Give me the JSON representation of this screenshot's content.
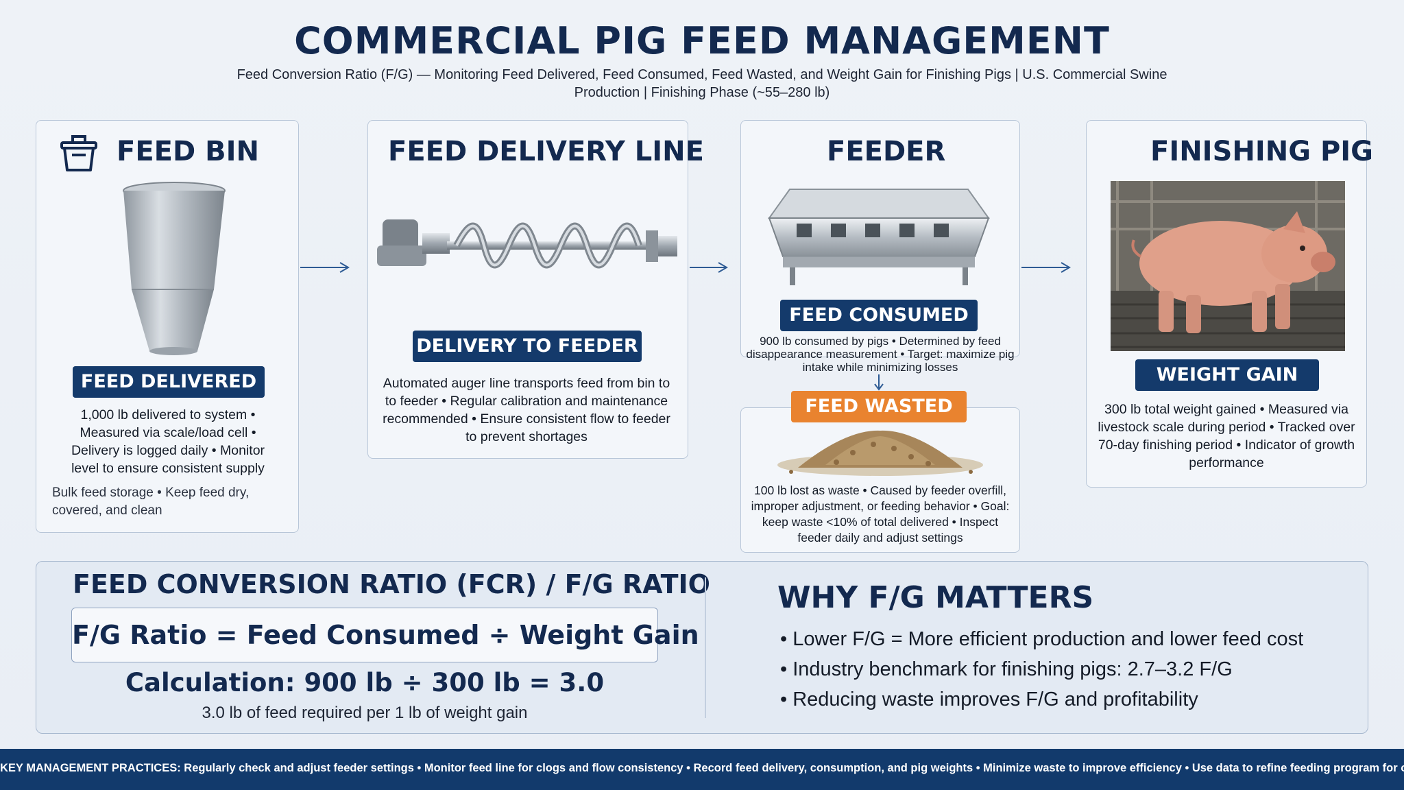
{
  "header": {
    "title": "COMMERCIAL PIG FEED MANAGEMENT",
    "subtitle": "Feed Conversion Ratio (F/G) — Monitoring Feed Delivered, Feed Consumed, Feed Wasted, and Weight Gain for Finishing Pigs | U.S. Commercial Swine Production | Finishing Phase (~55–280 lb)"
  },
  "feed_bin": {
    "heading": "FEED BIN",
    "icon": "bin-icon",
    "badge": "FEED DELIVERED",
    "details": "1,000 lb delivered to system • Measured via scale/load cell • Delivery is logged daily • Monitor level to ensure consistent supply",
    "note": "Bulk feed storage • Keep feed dry, covered, and clean"
  },
  "delivery_line": {
    "heading": "FEED DELIVERY LINE",
    "badge": "DELIVERY TO FEEDER",
    "details": "Automated auger line transports feed from bin to to feeder • Regular calibration and maintenance recommended • Ensure consistent flow to feeder to prevent shortages"
  },
  "feeder": {
    "heading": "FEEDER",
    "badge": "FEED CONSUMED",
    "details": "900 lb consumed by pigs • Determined by feed disappearance measurement • Target: maximize pig intake while minimizing losses"
  },
  "feed_wasted": {
    "badge": "FEED WASTED",
    "details": "100 lb lost as waste • Caused by feeder overfill, improper adjustment, or feeding behavior • Goal: keep waste <10% of total delivered • Inspect feeder daily and adjust settings"
  },
  "finishing_pig": {
    "heading": "FINISHING PIG",
    "badge": "WEIGHT GAIN",
    "details": "300 lb total weight gained • Measured via livestock scale during period • Tracked over 70-day finishing period • Indicator of growth performance"
  },
  "fcr": {
    "title": "FEED CONVERSION RATIO (FCR) / F/G RATIO",
    "formula": "F/G Ratio = Feed Consumed ÷ Weight Gain",
    "calculation": "Calculation: 900 lb ÷ 300 lb = 3.0",
    "note": "3.0 lb of feed required per 1 lb of weight gain"
  },
  "why": {
    "title": "WHY F/G MATTERS",
    "items": [
      "• Lower F/G = More efficient production and lower feed cost",
      "• Industry benchmark for finishing pigs: 2.7–3.2 F/G",
      "• Reducing waste improves F/G and profitability"
    ]
  },
  "footer": {
    "label": "KEY MANAGEMENT PRACTICES:",
    "text": "Regularly check and adjust feeder settings • Monitor feed line for clogs and flow consistency • Record feed delivery, consumption, and pig weights • Minimize waste to improve efficiency • Use data to refine feeding program for optimal performance"
  },
  "colors": {
    "navy": "#143a6b",
    "orange": "#e9832f",
    "background": "#eef2f7"
  }
}
